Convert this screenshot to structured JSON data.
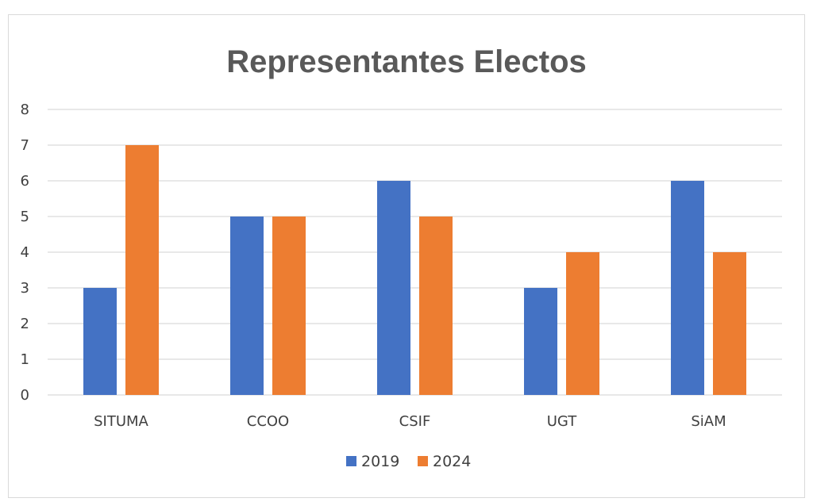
{
  "chart_data": {
    "type": "bar",
    "title": "Representantes Electos",
    "categories": [
      "SITUMA",
      "CCOO",
      "CSIF",
      "UGT",
      "SiAM"
    ],
    "series": [
      {
        "name": "2019",
        "values": [
          3,
          5,
          6,
          3,
          6
        ],
        "color": "#4472C4"
      },
      {
        "name": "2024",
        "values": [
          7,
          5,
          5,
          4,
          4
        ],
        "color": "#ED7D31"
      }
    ],
    "xlabel": "",
    "ylabel": "",
    "ylim": [
      0,
      8
    ],
    "yticks": [
      0,
      1,
      2,
      3,
      4,
      5,
      6,
      7,
      8
    ],
    "grid": true,
    "legend_position": "bottom"
  }
}
